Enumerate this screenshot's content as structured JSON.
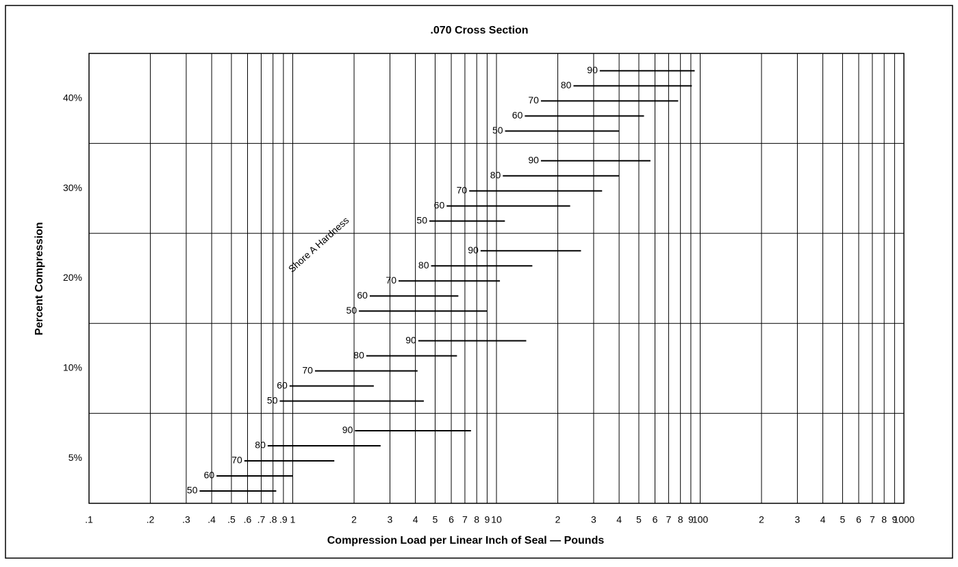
{
  "chart_data": {
    "type": "range-bar",
    "title": ".070 Cross Section",
    "x_label": "Compression Load per Linear Inch of Seal — Pounds",
    "y_label": "Percent Compression",
    "annotation": "Shore A Hardness",
    "categories": [
      "5%",
      "10%",
      "20%",
      "30%",
      "40%"
    ],
    "xscale": "log",
    "grid": true,
    "color": "#000000",
    "xlim": [
      0.1,
      1000
    ],
    "xticks": [
      {
        "value": 0.1,
        "label": ".1"
      },
      {
        "value": 0.2,
        "label": ".2"
      },
      {
        "value": 0.3,
        "label": ".3"
      },
      {
        "value": 0.4,
        "label": ".4"
      },
      {
        "value": 0.5,
        "label": ".5"
      },
      {
        "value": 0.6,
        "label": ".6"
      },
      {
        "value": 0.7,
        "label": ".7"
      },
      {
        "value": 0.8,
        "label": ".8"
      },
      {
        "value": 0.9,
        "label": ".9"
      },
      1,
      2,
      3,
      4,
      5,
      6,
      7,
      8,
      9,
      10,
      {
        "value": 20,
        "label": "2"
      },
      {
        "value": 30,
        "label": "3"
      },
      {
        "value": 40,
        "label": "4"
      },
      {
        "value": 50,
        "label": "5"
      },
      {
        "value": 60,
        "label": "6"
      },
      {
        "value": 70,
        "label": "7"
      },
      {
        "value": 80,
        "label": "8"
      },
      {
        "value": 90,
        "label": "9"
      },
      100,
      {
        "value": 200,
        "label": "2"
      },
      {
        "value": 300,
        "label": "3"
      },
      {
        "value": 400,
        "label": "4"
      },
      {
        "value": 500,
        "label": "5"
      },
      {
        "value": 600,
        "label": "6"
      },
      {
        "value": 700,
        "label": "7"
      },
      {
        "value": 800,
        "label": "8"
      },
      {
        "value": 900,
        "label": "9"
      },
      1000
    ],
    "series": [
      {
        "name": "50",
        "low": [
          0.38,
          0.94,
          2.3,
          5.1,
          12
        ],
        "high": [
          0.83,
          4.4,
          9,
          11,
          40
        ]
      },
      {
        "name": "60",
        "low": [
          0.46,
          1.05,
          2.6,
          6.2,
          15
        ],
        "high": [
          1,
          2.5,
          6.5,
          23,
          53
        ]
      },
      {
        "name": "70",
        "low": [
          0.63,
          1.4,
          3.6,
          8,
          18
        ],
        "high": [
          1.6,
          4.1,
          10.4,
          33,
          78
        ]
      },
      {
        "name": "80",
        "low": [
          0.82,
          2.5,
          5.2,
          11.7,
          26
        ],
        "high": [
          2.7,
          6.4,
          15,
          40,
          91
        ]
      },
      {
        "name": "90",
        "low": [
          2.2,
          4.5,
          9.1,
          18,
          35
        ],
        "high": [
          7.5,
          14,
          26,
          57,
          94
        ]
      }
    ]
  }
}
